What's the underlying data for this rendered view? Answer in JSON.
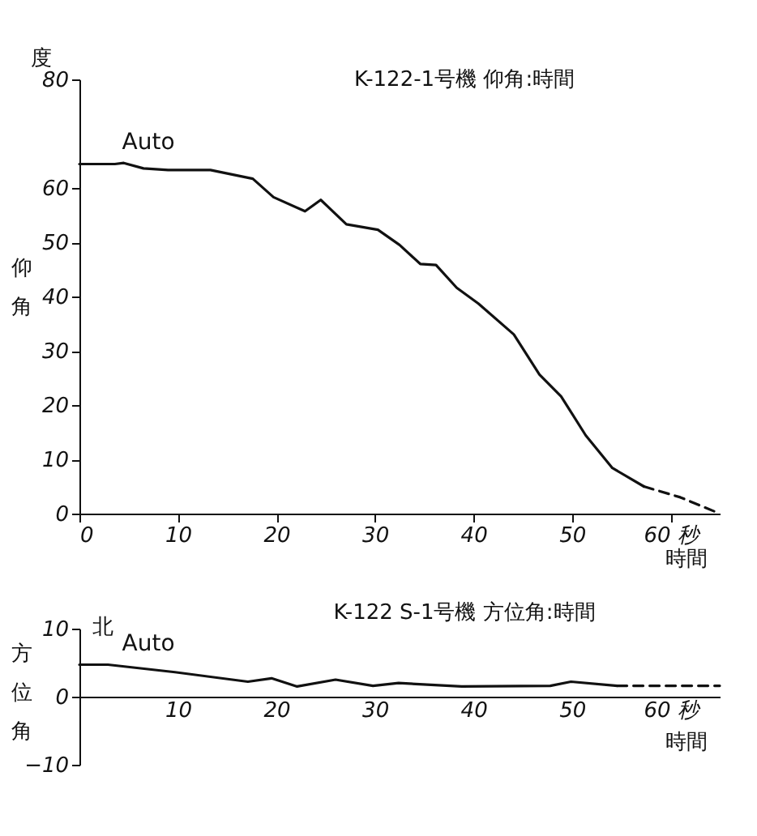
{
  "chart_data": [
    {
      "type": "line",
      "title": "K-122-1号機 仰角:時間",
      "xlabel": "時間",
      "ylabel": "仰角",
      "xlim": [
        0,
        65
      ],
      "ylim": [
        0,
        80
      ],
      "xticks": [
        0,
        10,
        20,
        30,
        40,
        50,
        {
          "value": 60,
          "label": "60 秒"
        }
      ],
      "yticks": [
        0,
        10,
        20,
        30,
        40,
        50,
        60,
        80
      ],
      "series": [
        {
          "color": "#111111",
          "line_style": "solid",
          "x": [
            0,
            3.6,
            4.5,
            6.5,
            9,
            13.3,
            17.6,
            19.7,
            22.9,
            24.5,
            27.1,
            30.3,
            32.5,
            34.6,
            36.2,
            38.3,
            40.5,
            44.1,
            46.7,
            48.9,
            51.4,
            54.1,
            57.3
          ],
          "values": [
            64.4,
            64.4,
            64.6,
            63.6,
            63.3,
            63.3,
            61.7,
            58.3,
            55.7,
            57.8,
            53.3,
            52.3,
            49.5,
            46,
            45.8,
            41.6,
            38.7,
            33,
            25.6,
            21.6,
            14.4,
            8.4,
            5
          ]
        },
        {
          "color": "#111111",
          "line_style": "dashed",
          "x": [
            57.3,
            61,
            65
          ],
          "values": [
            5,
            3,
            0
          ]
        }
      ],
      "annotations": [
        "度",
        {
          "text": "Auto",
          "x": 4,
          "y": 64.5
        }
      ],
      "grid": false,
      "marker": "none"
    },
    {
      "type": "line",
      "title": "K-122 S-1号機 方位角:時間",
      "xlabel": "時間",
      "ylabel": "方位角",
      "xlim": [
        0,
        65
      ],
      "ylim": [
        -10,
        10
      ],
      "xticks": [
        10,
        20,
        30,
        40,
        50,
        {
          "value": 60,
          "label": "60 秒"
        }
      ],
      "yticks": [
        -10,
        0,
        10
      ],
      "series": [
        {
          "color": "#111111",
          "line_style": "solid",
          "x": [
            0,
            2.9,
            9.7,
            17.1,
            19.5,
            22.1,
            26,
            29.8,
            32.4,
            38.8,
            47.8,
            49.9,
            54.6
          ],
          "values": [
            4.7,
            4.7,
            3.6,
            2.2,
            2.7,
            1.5,
            2.5,
            1.6,
            2,
            1.5,
            1.6,
            2.2,
            1.6
          ]
        },
        {
          "color": "#111111",
          "line_style": "dashed",
          "x": [
            54.6,
            65
          ],
          "values": [
            1.6,
            1.6
          ]
        }
      ],
      "annotations": [
        "北",
        {
          "text": "Auto",
          "x": 4,
          "y": 4.7
        }
      ],
      "grid": false,
      "marker": "none"
    }
  ]
}
